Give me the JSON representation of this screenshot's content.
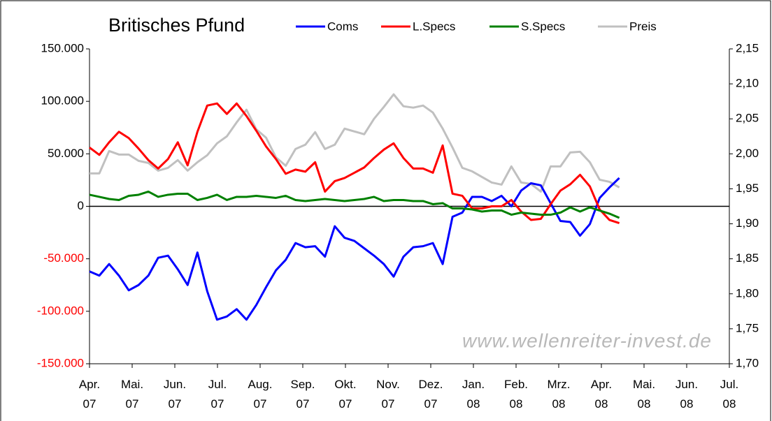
{
  "chart_data": {
    "type": "line",
    "title": "Britisches Pfund",
    "annotation": "www.wellenreiter-invest.de",
    "x": [
      0,
      0.23,
      0.46,
      0.69,
      0.92,
      1.15,
      1.38,
      1.61,
      1.84,
      2.07,
      2.3,
      2.53,
      2.76,
      2.99,
      3.22,
      3.45,
      3.68,
      3.91,
      4.14,
      4.37,
      4.6,
      4.83,
      5.06,
      5.29,
      5.52,
      5.75,
      5.98,
      6.21,
      6.44,
      6.67,
      6.9,
      7.13,
      7.36,
      7.59,
      7.82,
      8.05,
      8.28,
      8.51,
      8.74,
      8.97,
      9.2,
      9.43,
      9.66,
      9.89,
      10.12,
      10.35,
      10.58,
      10.81,
      11.04,
      11.27,
      11.5,
      11.73,
      11.96,
      12.19,
      12.42
    ],
    "xlim": [
      0,
      15
    ],
    "xticks": [
      {
        "value": 0,
        "label": "Apr. 07"
      },
      {
        "value": 1,
        "label": "Mai. 07"
      },
      {
        "value": 2,
        "label": "Jun. 07"
      },
      {
        "value": 3,
        "label": "Jul. 07"
      },
      {
        "value": 4,
        "label": "Aug. 07"
      },
      {
        "value": 5,
        "label": "Sep. 07"
      },
      {
        "value": 6,
        "label": "Okt. 07"
      },
      {
        "value": 7,
        "label": "Nov. 07"
      },
      {
        "value": 8,
        "label": "Dez. 07"
      },
      {
        "value": 9,
        "label": "Jan. 08"
      },
      {
        "value": 10,
        "label": "Feb. 08"
      },
      {
        "value": 11,
        "label": "Mrz. 08"
      },
      {
        "value": 12,
        "label": "Apr. 08"
      },
      {
        "value": 13,
        "label": "Mai. 08"
      },
      {
        "value": 14,
        "label": "Jun. 08"
      },
      {
        "value": 15,
        "label": "Jul. 08"
      }
    ],
    "ylim": [
      -150000,
      150000
    ],
    "yticks": [
      {
        "value": -150000,
        "label": "-150.000"
      },
      {
        "value": -100000,
        "label": "-100.000"
      },
      {
        "value": -50000,
        "label": "-50.000"
      },
      0,
      {
        "value": 50000,
        "label": "50.000"
      },
      {
        "value": 100000,
        "label": "100.000"
      },
      {
        "value": 150000,
        "label": "150.000"
      }
    ],
    "y2lim": [
      1.7,
      2.15
    ],
    "y2ticks": [
      {
        "value": 1.7,
        "label": "1,70"
      },
      {
        "value": 1.75,
        "label": "1,75"
      },
      {
        "value": 1.8,
        "label": "1,80"
      },
      {
        "value": 1.85,
        "label": "1,85"
      },
      {
        "value": 1.9,
        "label": "1,90"
      },
      {
        "value": 1.95,
        "label": "1,95"
      },
      {
        "value": 2.0,
        "label": "2,00"
      },
      {
        "value": 2.05,
        "label": "2,05"
      },
      {
        "value": 2.1,
        "label": "2,10"
      },
      {
        "value": 2.15,
        "label": "2,15"
      }
    ],
    "legend": "top",
    "series": [
      {
        "name": "Coms",
        "color": "#0000ff",
        "values": [
          -62000,
          -66000,
          -55000,
          -66000,
          -80000,
          -75000,
          -66000,
          -49000,
          -47000,
          -60000,
          -75000,
          -44000,
          -81000,
          -108000,
          -105000,
          -98000,
          -108000,
          -94000,
          -77000,
          -61000,
          -51000,
          -35000,
          -39000,
          -38000,
          -48000,
          -19000,
          -30000,
          -33000,
          -40000,
          -47000,
          -55000,
          -67000,
          -48000,
          -39000,
          -38000,
          -35000,
          -55000,
          -10000,
          -6000,
          9000,
          9000,
          5000,
          10000,
          0,
          15000,
          22000,
          20000,
          3000,
          -14000,
          -15000,
          -28000,
          -17000,
          8000,
          18000,
          27000
        ]
      },
      {
        "name": "L.Specs",
        "color": "#ff0000",
        "values": [
          56000,
          49000,
          61000,
          71000,
          65000,
          55000,
          44000,
          36000,
          45000,
          61000,
          39000,
          71000,
          96000,
          98000,
          88000,
          98000,
          86000,
          72000,
          57000,
          45000,
          31000,
          35000,
          33000,
          42000,
          14000,
          24000,
          27000,
          32000,
          37000,
          46000,
          54000,
          60000,
          46000,
          36000,
          36000,
          32000,
          58000,
          12000,
          10000,
          -2000,
          -2000,
          0,
          0,
          6000,
          -5000,
          -13000,
          -12000,
          2000,
          15000,
          21000,
          30000,
          19000,
          -3000,
          -13000,
          -16000
        ]
      },
      {
        "name": "S.Specs",
        "color": "#008000",
        "values": [
          11000,
          9000,
          7000,
          6000,
          10000,
          11000,
          14000,
          9000,
          11000,
          12000,
          12000,
          6000,
          8000,
          11000,
          6000,
          9000,
          9000,
          10000,
          9000,
          8000,
          10000,
          6000,
          5000,
          6000,
          7000,
          6000,
          5000,
          6000,
          7000,
          9000,
          5000,
          6000,
          6000,
          5000,
          5000,
          2000,
          3000,
          -2000,
          -2000,
          -3000,
          -5000,
          -4000,
          -4000,
          -8000,
          -6000,
          -7000,
          -8000,
          -8000,
          -6000,
          -1000,
          -5000,
          -1000,
          -4000,
          -7000,
          -11000
        ]
      },
      {
        "name": "Preis",
        "color": "#c0c0c0",
        "axis": "y2",
        "values": [
          1.972,
          1.972,
          2.004,
          1.999,
          1.999,
          1.99,
          1.987,
          1.976,
          1.98,
          1.991,
          1.976,
          1.988,
          1.998,
          2.015,
          2.025,
          2.045,
          2.063,
          2.035,
          2.023,
          1.995,
          1.983,
          2.007,
          2.013,
          2.031,
          2.007,
          2.013,
          2.036,
          2.032,
          2.028,
          2.05,
          2.067,
          2.085,
          2.068,
          2.066,
          2.069,
          2.059,
          2.036,
          2.009,
          1.98,
          1.975,
          1.967,
          1.959,
          1.956,
          1.982,
          1.959,
          1.957,
          1.946,
          1.982,
          1.982,
          2.002,
          2.003,
          1.988,
          1.963,
          1.96,
          1.952
        ]
      }
    ]
  }
}
